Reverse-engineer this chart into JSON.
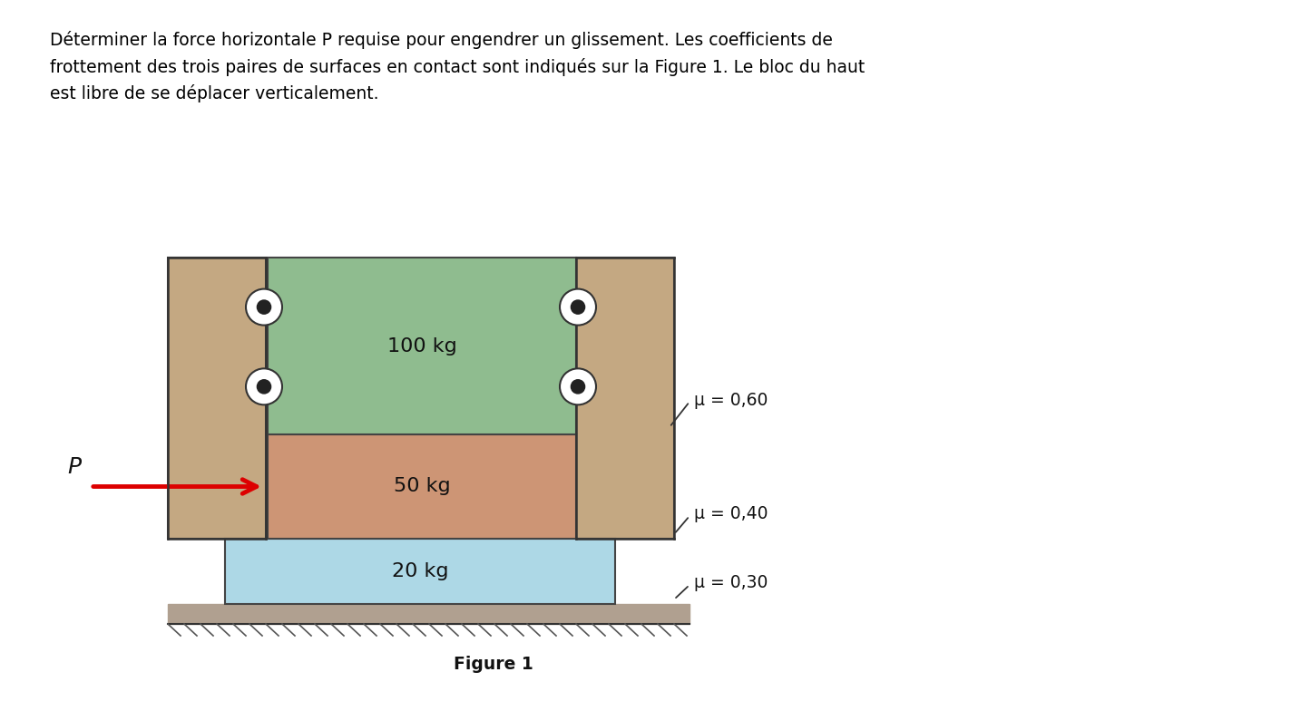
{
  "title_text": "Déterminer la force horizontale P requise pour engendrer un glissement. Les coefficients de\nfrottement des trois paires de surfaces en contact sont indiqués sur la Figure 1. Le bloc du haut\nest libre de se déplacer verticalement.",
  "figure_label": "Figure 1",
  "bg_color": "#ffffff",
  "text_color": "#000000",
  "block_top_color": "#8fbc8f",
  "block_mid_color": "#cd9575",
  "block_bot_color": "#add8e6",
  "wall_color": "#c4a882",
  "ground_color": "#c4a882",
  "wall_line_color": "#333333",
  "block_top_label": "100 kg",
  "block_mid_label": "50 kg",
  "block_bot_label": "20 kg",
  "mu1_label": "μ = 0,60",
  "mu2_label": "μ = 0,40",
  "mu3_label": "μ = 0,30",
  "P_label": "P",
  "arrow_color": "#dd0000",
  "figsize": [
    14.34,
    7.84
  ],
  "dpi": 100
}
